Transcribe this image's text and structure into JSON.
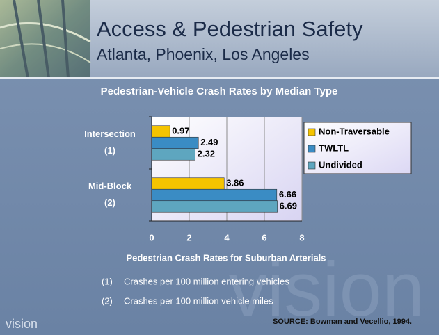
{
  "header": {
    "title": "Access & Pedestrian Safety",
    "subtitle": "Atlanta, Phoenix, Los Angeles"
  },
  "chart_data": {
    "type": "hbar",
    "title": "Pedestrian-Vehicle Crash Rates by Median Type",
    "x_label": "Pedestrian Crash Rates for Suburban Arterials",
    "categories": [
      [
        "Intersection",
        "(1)"
      ],
      [
        "Mid-Block",
        "(2)"
      ]
    ],
    "series": [
      {
        "name": "Non-Traversable",
        "color": "#f5c400",
        "values": [
          0.97,
          3.86
        ]
      },
      {
        "name": "TWLTL",
        "color": "#3a8cc4",
        "values": [
          2.49,
          6.66
        ]
      },
      {
        "name": "Undivided",
        "color": "#5ea6bf",
        "values": [
          2.32,
          6.69
        ]
      }
    ],
    "xlim": [
      0,
      8
    ],
    "xticks": [
      0,
      2,
      4,
      6,
      8
    ],
    "grid": true,
    "legend": "right"
  },
  "notes": [
    [
      "(1)",
      "Crashes per 100 million entering vehicles"
    ],
    [
      "(2)",
      "Crashes per 100 million vehicle miles"
    ]
  ],
  "source": "SOURCE:  Bowman and Vecellio, 1994.",
  "logo": "vision"
}
